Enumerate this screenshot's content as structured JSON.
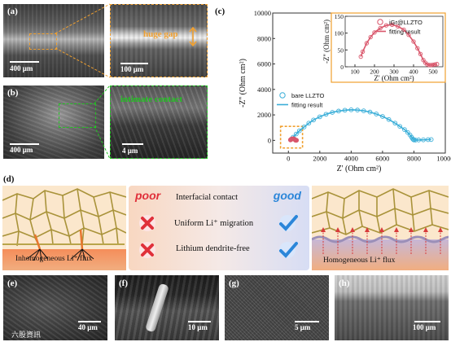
{
  "panels": {
    "a": {
      "label": "(a)",
      "scale": "400 μm",
      "zoom_scale": "100 μm",
      "annotation": "huge gap"
    },
    "b": {
      "label": "(b)",
      "scale": "400 μm",
      "zoom_scale": "4 μm",
      "annotation": "intimate contact"
    },
    "d": {
      "label": "(d)",
      "left_caption": "Inhomogeneous Li⁺ flux",
      "right_caption": "Homogeneous Li⁺ flux",
      "poor": "poor",
      "good": "good",
      "rows": [
        "Interfacial contact",
        "Uniform Li⁺ migration",
        "Lithium dendrite-free"
      ]
    },
    "e": {
      "label": "(e)",
      "scale": "40 μm"
    },
    "f": {
      "label": "(f)",
      "scale": "10 μm"
    },
    "g": {
      "label": "(g)",
      "scale": "5 μm"
    },
    "h": {
      "label": "(h)",
      "scale": "100 μm"
    }
  },
  "watermark": "六股資訊",
  "colors": {
    "orange": "#f0a030",
    "green": "#22c322",
    "teal": "#3aaed8",
    "pink": "#d9566b",
    "red": "#e0303a",
    "blue": "#2b86d9"
  },
  "chart_data": [
    {
      "type": "scatter",
      "label": "(c)",
      "xlabel": "Z' (Ohm cm²)",
      "ylabel": "-Z'' (Ohm cm²)",
      "xlim": [
        -1000,
        10000
      ],
      "ylim": [
        -1000,
        10000
      ],
      "xticks": [
        0,
        2000,
        4000,
        6000,
        8000,
        10000
      ],
      "yticks": [
        0,
        2000,
        4000,
        6000,
        8000,
        10000
      ],
      "legend_position": "lower-left",
      "series": [
        {
          "name": "bare LLZTO",
          "color": "#3aaed8",
          "marker": "open-circle",
          "x": [
            200,
            300,
            500,
            700,
            1000,
            1300,
            1600,
            2000,
            2400,
            2800,
            3200,
            3600,
            4000,
            4400,
            4800,
            5200,
            5600,
            6000,
            6400,
            6800,
            7100,
            7400,
            7600,
            7750,
            7850,
            7920,
            7970,
            8000,
            8100,
            8300,
            8600,
            8900,
            9100
          ],
          "y": [
            100,
            250,
            500,
            750,
            1050,
            1350,
            1600,
            1850,
            2050,
            2200,
            2300,
            2370,
            2400,
            2380,
            2320,
            2220,
            2070,
            1880,
            1640,
            1350,
            1100,
            850,
            620,
            420,
            250,
            120,
            60,
            30,
            25,
            30,
            40,
            55,
            65
          ]
        },
        {
          "name": "fitting result",
          "color": "#3aaed8",
          "marker": "line",
          "of": "bare LLZTO"
        },
        {
          "name": "iGr@LLZTO",
          "color": "#d9566b",
          "marker": "open-circle",
          "x": [
            130,
            140,
            160,
            190,
            230,
            270,
            310,
            350,
            385,
            410,
            430,
            445,
            455,
            465,
            475,
            485,
            495,
            505,
            515
          ],
          "y": [
            30,
            45,
            70,
            95,
            115,
            125,
            122,
            110,
            90,
            70,
            45,
            25,
            12,
            6,
            5,
            5,
            6,
            7,
            8
          ]
        },
        {
          "name": "fitting result",
          "color": "#d9566b",
          "marker": "line",
          "of": "iGr@LLZTO"
        }
      ]
    },
    {
      "type": "scatter",
      "label": "inset",
      "xlabel": "Z' (Ohm cm²)",
      "ylabel": "-Z'' (Ohm cm²)",
      "xlim": [
        50,
        550
      ],
      "ylim": [
        0,
        150
      ],
      "xticks": [
        100,
        200,
        300,
        400,
        500
      ],
      "yticks": [
        0,
        50,
        100,
        150
      ],
      "legend_position": "top-right",
      "series": [
        {
          "name": "iGr@LLZTO",
          "color": "#d9566b",
          "marker": "open-circle",
          "x": [
            130,
            140,
            160,
            180,
            200,
            230,
            260,
            290,
            320,
            350,
            375,
            400,
            420,
            435,
            450,
            460,
            470,
            480,
            490,
            500,
            510,
            520
          ],
          "y": [
            30,
            45,
            70,
            88,
            102,
            115,
            123,
            125,
            120,
            110,
            95,
            75,
            55,
            38,
            20,
            12,
            7,
            5,
            5,
            6,
            7,
            8
          ]
        },
        {
          "name": "fitting result",
          "color": "#d9566b",
          "marker": "line",
          "of": "iGr@LLZTO"
        }
      ]
    }
  ]
}
